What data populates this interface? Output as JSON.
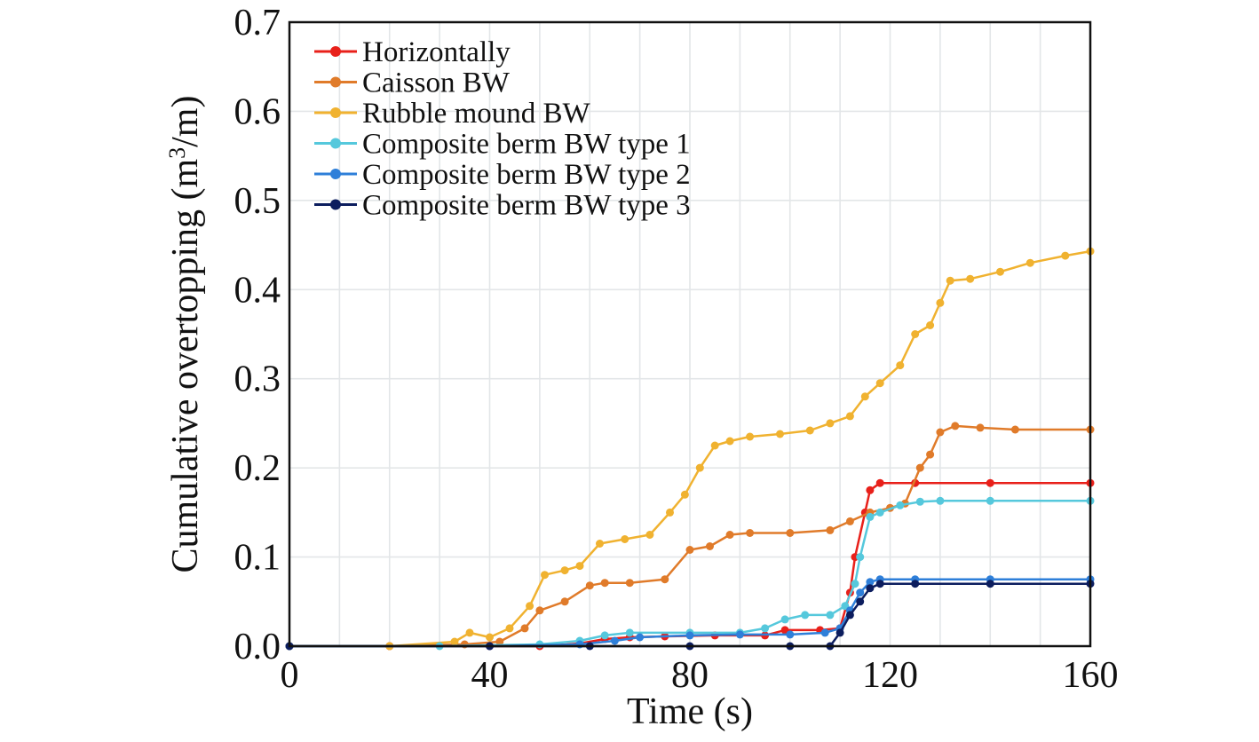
{
  "chart_data": {
    "type": "line",
    "xlabel": "Time (s)",
    "ylabel_main": "Cumulative overtopping (m",
    "ylabel_sup": "3",
    "ylabel_tail": "/m)",
    "xlim": [
      0,
      160
    ],
    "ylim": [
      0,
      0.7
    ],
    "x_ticks": [
      "0",
      "40",
      "80",
      "120",
      "160"
    ],
    "y_ticks": [
      "0.0",
      "0.1",
      "0.2",
      "0.3",
      "0.4",
      "0.5",
      "0.6",
      "0.7"
    ],
    "grid": true,
    "legend_position": "top-left",
    "series": [
      {
        "name": "Horizontally",
        "color": "#e8201a",
        "points": [
          [
            0,
            0
          ],
          [
            20,
            0
          ],
          [
            40,
            0
          ],
          [
            50,
            0
          ],
          [
            58,
            0.003
          ],
          [
            63,
            0.008
          ],
          [
            68,
            0.01
          ],
          [
            75,
            0.011
          ],
          [
            85,
            0.012
          ],
          [
            95,
            0.012
          ],
          [
            99,
            0.018
          ],
          [
            106,
            0.018
          ],
          [
            110,
            0.02
          ],
          [
            112,
            0.06
          ],
          [
            113,
            0.1
          ],
          [
            115,
            0.15
          ],
          [
            116,
            0.175
          ],
          [
            118,
            0.183
          ],
          [
            125,
            0.183
          ],
          [
            140,
            0.183
          ],
          [
            160,
            0.183
          ]
        ]
      },
      {
        "name": "Caisson BW",
        "color": "#e07b2a",
        "points": [
          [
            0,
            0
          ],
          [
            20,
            0
          ],
          [
            35,
            0.002
          ],
          [
            42,
            0.005
          ],
          [
            47,
            0.02
          ],
          [
            50,
            0.04
          ],
          [
            55,
            0.05
          ],
          [
            60,
            0.068
          ],
          [
            63,
            0.071
          ],
          [
            68,
            0.071
          ],
          [
            75,
            0.075
          ],
          [
            80,
            0.108
          ],
          [
            84,
            0.112
          ],
          [
            88,
            0.125
          ],
          [
            92,
            0.127
          ],
          [
            100,
            0.127
          ],
          [
            108,
            0.13
          ],
          [
            112,
            0.14
          ],
          [
            116,
            0.15
          ],
          [
            120,
            0.155
          ],
          [
            123,
            0.16
          ],
          [
            126,
            0.2
          ],
          [
            128,
            0.215
          ],
          [
            130,
            0.24
          ],
          [
            133,
            0.247
          ],
          [
            138,
            0.245
          ],
          [
            145,
            0.243
          ],
          [
            160,
            0.243
          ]
        ]
      },
      {
        "name": "Rubble mound BW",
        "color": "#f0b230",
        "points": [
          [
            0,
            0
          ],
          [
            20,
            0
          ],
          [
            33,
            0.005
          ],
          [
            36,
            0.015
          ],
          [
            40,
            0.01
          ],
          [
            44,
            0.02
          ],
          [
            48,
            0.045
          ],
          [
            51,
            0.08
          ],
          [
            55,
            0.085
          ],
          [
            58,
            0.09
          ],
          [
            62,
            0.115
          ],
          [
            67,
            0.12
          ],
          [
            72,
            0.125
          ],
          [
            76,
            0.15
          ],
          [
            79,
            0.17
          ],
          [
            82,
            0.2
          ],
          [
            85,
            0.225
          ],
          [
            88,
            0.23
          ],
          [
            92,
            0.235
          ],
          [
            98,
            0.238
          ],
          [
            104,
            0.242
          ],
          [
            108,
            0.25
          ],
          [
            112,
            0.258
          ],
          [
            115,
            0.28
          ],
          [
            118,
            0.295
          ],
          [
            122,
            0.315
          ],
          [
            125,
            0.35
          ],
          [
            128,
            0.36
          ],
          [
            130,
            0.385
          ],
          [
            132,
            0.41
          ],
          [
            136,
            0.412
          ],
          [
            142,
            0.42
          ],
          [
            148,
            0.43
          ],
          [
            155,
            0.438
          ],
          [
            160,
            0.443
          ]
        ]
      },
      {
        "name": "Composite berm BW type 1",
        "color": "#55c8dc",
        "points": [
          [
            0,
            0
          ],
          [
            30,
            0
          ],
          [
            50,
            0.002
          ],
          [
            58,
            0.006
          ],
          [
            63,
            0.012
          ],
          [
            68,
            0.015
          ],
          [
            80,
            0.015
          ],
          [
            90,
            0.015
          ],
          [
            95,
            0.02
          ],
          [
            99,
            0.03
          ],
          [
            103,
            0.035
          ],
          [
            108,
            0.035
          ],
          [
            111,
            0.045
          ],
          [
            113,
            0.07
          ],
          [
            114,
            0.1
          ],
          [
            116,
            0.145
          ],
          [
            118,
            0.15
          ],
          [
            122,
            0.158
          ],
          [
            126,
            0.162
          ],
          [
            130,
            0.163
          ],
          [
            140,
            0.163
          ],
          [
            160,
            0.163
          ]
        ]
      },
      {
        "name": "Composite berm BW type 2",
        "color": "#2e7fd9",
        "points": [
          [
            0,
            0
          ],
          [
            40,
            0
          ],
          [
            58,
            0.002
          ],
          [
            65,
            0.006
          ],
          [
            70,
            0.01
          ],
          [
            80,
            0.012
          ],
          [
            90,
            0.013
          ],
          [
            100,
            0.013
          ],
          [
            107,
            0.015
          ],
          [
            110,
            0.02
          ],
          [
            112,
            0.04
          ],
          [
            114,
            0.06
          ],
          [
            116,
            0.072
          ],
          [
            118,
            0.075
          ],
          [
            125,
            0.075
          ],
          [
            140,
            0.075
          ],
          [
            160,
            0.075
          ]
        ]
      },
      {
        "name": "Composite berm BW type 3",
        "color": "#0c1d5e",
        "points": [
          [
            0,
            0
          ],
          [
            40,
            0
          ],
          [
            60,
            0
          ],
          [
            80,
            0
          ],
          [
            100,
            0
          ],
          [
            108,
            0
          ],
          [
            110,
            0.015
          ],
          [
            112,
            0.035
          ],
          [
            114,
            0.05
          ],
          [
            116,
            0.065
          ],
          [
            118,
            0.07
          ],
          [
            125,
            0.07
          ],
          [
            140,
            0.07
          ],
          [
            160,
            0.07
          ]
        ]
      }
    ]
  }
}
